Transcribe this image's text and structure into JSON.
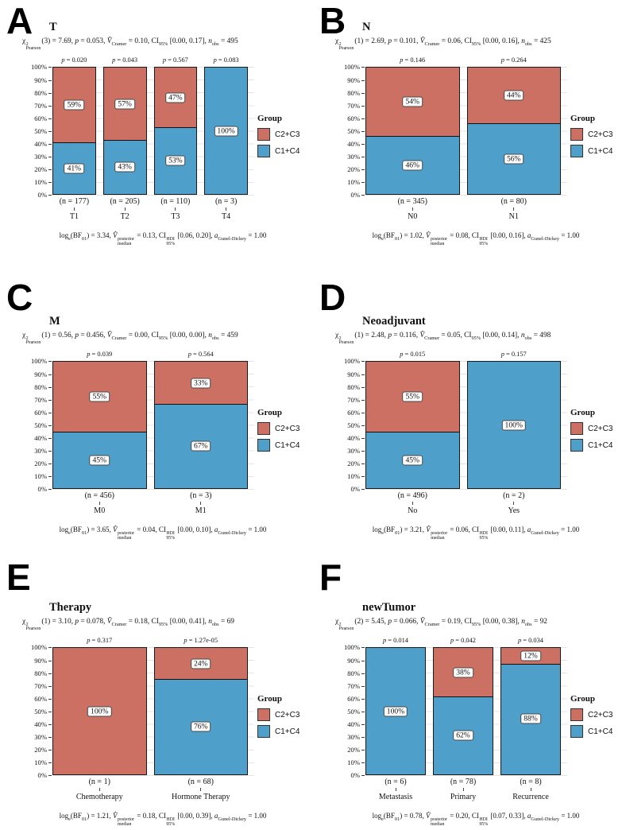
{
  "figure": {
    "panel_letters": [
      "A",
      "B",
      "C",
      "D",
      "E",
      "F"
    ],
    "colors": {
      "group_c2c3": "#cb7062",
      "group_c1c4": "#4f9fcb",
      "bar_outline": "#1a1a1a",
      "gridline": "#e4e4e4"
    }
  },
  "legend": {
    "title": "Group",
    "items": [
      {
        "label": "C2+C3",
        "color": "#cb7062"
      },
      {
        "label": "C1+C4",
        "color": "#4f9fcb"
      }
    ]
  },
  "y_axis_ticks": [
    "100%",
    "90%",
    "80%",
    "70%",
    "60%",
    "50%",
    "40%",
    "30%",
    "20%",
    "10%",
    "0%"
  ],
  "stat_labels": {
    "chi": "χ",
    "sup2": "2",
    "pearson": "Pearson",
    "p": "p",
    "vhat": "V̂",
    "cramer": "Cramer",
    "ci": "CI",
    "pct95": "95%",
    "n": "n",
    "obs": "obs",
    "log": "log",
    "e": "e",
    "bf": "BF",
    "bf01": "01",
    "posterior": "posterior",
    "median": "median",
    "hdi": "HDI",
    "a": "a",
    "gunel_dickey": "Gunel-Dickey",
    "eq": " = ",
    "comma": ", "
  },
  "chart_data": [
    {
      "panel": "A",
      "type": "bar",
      "stacked": true,
      "percent": true,
      "ylim": [
        0,
        100
      ],
      "grid": true,
      "title": "T",
      "subtitle_text": "χ2Pearson(3) = 7.69, p = 0.053, V̂Cramer = 0.10, CI95% [0.00, 0.17], nobs = 495",
      "caption_text": "loge(BF01) = 3.34, V̂posterior median = 0.13, CIHDI 95% [0.06, 0.20], aGunel-Dickey = 1.00",
      "stats": {
        "df": "3",
        "chi2": "7.69",
        "p": "0.053",
        "v": "0.10",
        "ci": "[0.00, 0.17]",
        "n": "495"
      },
      "bayes": {
        "bf": "3.34",
        "v": "0.13",
        "ci": "[0.06, 0.20]",
        "a": "1.00"
      },
      "categories": [
        "T1",
        "T2",
        "T3",
        "T4"
      ],
      "n_labels": [
        "(n = 177)",
        "(n = 205)",
        "(n = 110)",
        "(n = 3)"
      ],
      "bar_p_values": [
        "0.020",
        "0.043",
        "0.567",
        "0.083"
      ],
      "series": [
        {
          "name": "C2+C3",
          "values": [
            59,
            57,
            47,
            0
          ]
        },
        {
          "name": "C1+C4",
          "values": [
            41,
            43,
            53,
            100
          ]
        }
      ]
    },
    {
      "panel": "B",
      "type": "bar",
      "stacked": true,
      "percent": true,
      "ylim": [
        0,
        100
      ],
      "grid": true,
      "title": "N",
      "subtitle_text": "χ2Pearson(1) = 2.69, p = 0.101, V̂Cramer = 0.06, CI95% [0.00, 0.16], nobs = 425",
      "caption_text": "loge(BF01) = 1.02, V̂posterior median = 0.08, CIHDI 95% [0.00, 0.16], aGunel-Dickey = 1.00",
      "stats": {
        "df": "1",
        "chi2": "2.69",
        "p": "0.101",
        "v": "0.06",
        "ci": "[0.00, 0.16]",
        "n": "425"
      },
      "bayes": {
        "bf": "1.02",
        "v": "0.08",
        "ci": "[0.00, 0.16]",
        "a": "1.00"
      },
      "categories": [
        "N0",
        "N1"
      ],
      "n_labels": [
        "(n = 345)",
        "(n = 80)"
      ],
      "bar_p_values": [
        "0.146",
        "0.264"
      ],
      "series": [
        {
          "name": "C2+C3",
          "values": [
            54,
            44
          ]
        },
        {
          "name": "C1+C4",
          "values": [
            46,
            56
          ]
        }
      ]
    },
    {
      "panel": "C",
      "type": "bar",
      "stacked": true,
      "percent": true,
      "ylim": [
        0,
        100
      ],
      "grid": true,
      "title": "M",
      "subtitle_text": "χ2Pearson(1) = 0.56, p = 0.456, V̂Cramer = 0.00, CI95% [0.00, 0.00], nobs = 459",
      "caption_text": "loge(BF01) = 3.65, V̂posterior median = 0.04, CIHDI 95% [0.00, 0.10], aGunel-Dickey = 1.00",
      "stats": {
        "df": "1",
        "chi2": "0.56",
        "p": "0.456",
        "v": "0.00",
        "ci": "[0.00, 0.00]",
        "n": "459"
      },
      "bayes": {
        "bf": "3.65",
        "v": "0.04",
        "ci": "[0.00, 0.10]",
        "a": "1.00"
      },
      "categories": [
        "M0",
        "M1"
      ],
      "n_labels": [
        "(n = 456)",
        "(n = 3)"
      ],
      "bar_p_values": [
        "0.039",
        "0.564"
      ],
      "series": [
        {
          "name": "C2+C3",
          "values": [
            55,
            33
          ]
        },
        {
          "name": "C1+C4",
          "values": [
            45,
            67
          ]
        }
      ]
    },
    {
      "panel": "D",
      "type": "bar",
      "stacked": true,
      "percent": true,
      "ylim": [
        0,
        100
      ],
      "grid": true,
      "title": "Neoadjuvant",
      "subtitle_text": "χ2Pearson(1) = 2.48, p = 0.116, V̂Cramer = 0.05, CI95% [0.00, 0.14], nobs = 498",
      "caption_text": "loge(BF01) = 3.21, V̂posterior median = 0.06, CIHDI 95% [0.00, 0.11], aGunel-Dickey = 1.00",
      "stats": {
        "df": "1",
        "chi2": "2.48",
        "p": "0.116",
        "v": "0.05",
        "ci": "[0.00, 0.14]",
        "n": "498"
      },
      "bayes": {
        "bf": "3.21",
        "v": "0.06",
        "ci": "[0.00, 0.11]",
        "a": "1.00"
      },
      "categories": [
        "No",
        "Yes"
      ],
      "n_labels": [
        "(n = 496)",
        "(n = 2)"
      ],
      "bar_p_values": [
        "0.015",
        "0.157"
      ],
      "series": [
        {
          "name": "C2+C3",
          "values": [
            55,
            0
          ]
        },
        {
          "name": "C1+C4",
          "values": [
            45,
            100
          ]
        }
      ]
    },
    {
      "panel": "E",
      "type": "bar",
      "stacked": true,
      "percent": true,
      "ylim": [
        0,
        100
      ],
      "grid": true,
      "title": "Therapy",
      "subtitle_text": "χ2Pearson(1) = 3.10, p = 0.078, V̂Cramer = 0.18, CI95% [0.00, 0.41], nobs = 69",
      "caption_text": "loge(BF01) = 1.21, V̂posterior median = 0.18, CIHDI 95% [0.00, 0.39], aGunel-Dickey = 1.00",
      "stats": {
        "df": "1",
        "chi2": "3.10",
        "p": "0.078",
        "v": "0.18",
        "ci": "[0.00, 0.41]",
        "n": "69"
      },
      "bayes": {
        "bf": "1.21",
        "v": "0.18",
        "ci": "[0.00, 0.39]",
        "a": "1.00"
      },
      "categories": [
        "Chemotherapy",
        "Hormone Therapy"
      ],
      "n_labels": [
        "(n = 1)",
        "(n = 68)"
      ],
      "bar_p_values": [
        "0.317",
        "1.27e-05"
      ],
      "series": [
        {
          "name": "C2+C3",
          "values": [
            100,
            24
          ]
        },
        {
          "name": "C1+C4",
          "values": [
            0,
            76
          ]
        }
      ]
    },
    {
      "panel": "F",
      "type": "bar",
      "stacked": true,
      "percent": true,
      "ylim": [
        0,
        100
      ],
      "grid": true,
      "title": "newTumor",
      "subtitle_text": "χ2Pearson(2) = 5.45, p = 0.066, V̂Cramer = 0.19, CI95% [0.00, 0.38], nobs = 92",
      "caption_text": "loge(BF01) = 0.78, V̂posterior median = 0.20, CIHDI 95% [0.07, 0.33], aGunel-Dickey = 1.00",
      "stats": {
        "df": "2",
        "chi2": "5.45",
        "p": "0.066",
        "v": "0.19",
        "ci": "[0.00, 0.38]",
        "n": "92"
      },
      "bayes": {
        "bf": "0.78",
        "v": "0.20",
        "ci": "[0.07, 0.33]",
        "a": "1.00"
      },
      "categories": [
        "Metastasis",
        "Primary",
        "Recurrence"
      ],
      "n_labels": [
        "(n = 6)",
        "(n = 78)",
        "(n = 8)"
      ],
      "bar_p_values": [
        "0.014",
        "0.042",
        "0.034"
      ],
      "series": [
        {
          "name": "C2+C3",
          "values": [
            0,
            38,
            12
          ]
        },
        {
          "name": "C1+C4",
          "values": [
            100,
            62,
            88
          ]
        }
      ]
    }
  ]
}
